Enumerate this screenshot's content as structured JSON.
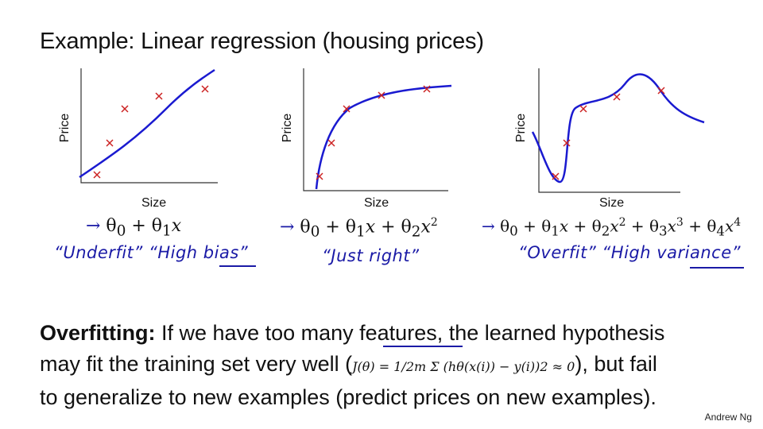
{
  "title": "Example: Linear regression (housing prices)",
  "plots": [
    {
      "ylabel": "Price",
      "xlabel": "Size",
      "formula": "θ0 + θ1x",
      "formula_html": "→ θ<sub>0</sub> + θ<sub>1</sub><i>x</i>",
      "note": "“Underfit”  “High bias”"
    },
    {
      "ylabel": "Price",
      "xlabel": "Size",
      "formula": "θ0 + θ1x + θ2x2",
      "formula_html": "→ θ<sub>0</sub> + θ<sub>1</sub><i>x</i> + θ<sub>2</sub><i>x</i><sup>2</sup>",
      "note": "“Just right”"
    },
    {
      "ylabel": "Price",
      "xlabel": "Size",
      "formula": "θ0 + θ1x + θ2x2 + θ3x3 + θ4x4",
      "formula_html": "→ θ<sub>0</sub> + θ<sub>1</sub><i>x</i> + θ<sub>2</sub><i>x</i><sup>2</sup> + θ<sub>3</sub><i>x</i><sup>3</sup> + θ<sub>4</sub><i>x</i><sup>4</sup>",
      "note": "“Overfit”  “High variance”"
    }
  ],
  "body": {
    "term": "Overfitting:",
    "line1": "If we have too many features, the learned hypothesis",
    "line2_start": "may fit the training set very well (",
    "equation": "J(θ) = 1/2m Σ (hθ(x(i)) − y(i))2 ≈ 0",
    "line2_end": "), but fail",
    "line3": "to generalize to new examples (predict prices on new examples)."
  },
  "footer": "Andrew Ng",
  "colors": {
    "curve": "#1a1ad0",
    "points": "#cc2222",
    "ink": "#1a1aa6"
  }
}
